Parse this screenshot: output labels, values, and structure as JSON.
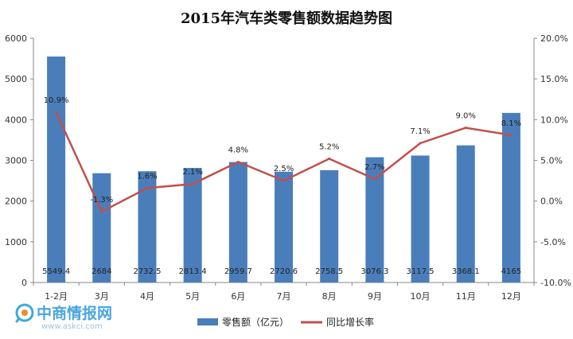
{
  "chart_data": {
    "type": "bar",
    "title": "2015年汽车类零售额数据趋势图",
    "categories": [
      "1-2月",
      "3月",
      "4月",
      "5月",
      "6月",
      "7月",
      "8月",
      "9月",
      "10月",
      "11月",
      "12月"
    ],
    "series": [
      {
        "name": "零售额（亿元）",
        "type": "bar",
        "axis": "left",
        "values": [
          5549.4,
          2684,
          2732.5,
          2813.4,
          2959.7,
          2720.6,
          2758.5,
          3076.3,
          3117.5,
          3368.1,
          4165
        ],
        "labels": [
          "5549.4",
          "2684",
          "2732.5",
          "2813.4",
          "2959.7",
          "2720.6",
          "2758.5",
          "3076.3",
          "3117.5",
          "3368.1",
          "4165"
        ]
      },
      {
        "name": "同比增长率",
        "type": "line",
        "axis": "right",
        "values": [
          10.9,
          -1.3,
          1.6,
          2.1,
          4.8,
          2.5,
          5.2,
          2.7,
          7.1,
          9.0,
          8.1
        ],
        "labels": [
          "10.9%",
          "-1.3%",
          "1.6%",
          "2.1%",
          "4.8%",
          "2.5%",
          "5.2%",
          "2.7%",
          "7.1%",
          "9.0%",
          "8.1%"
        ]
      }
    ],
    "y_left": {
      "ylim": [
        0,
        6000
      ],
      "ticks": [
        "0",
        "1000",
        "2000",
        "3000",
        "4000",
        "5000",
        "6000"
      ]
    },
    "y_right": {
      "ylim": [
        -10,
        20
      ],
      "ticks": [
        "-10.0%",
        "-5.0%",
        "0.0%",
        "5.0%",
        "10.0%",
        "15.0%",
        "20.0%"
      ]
    },
    "grid": false,
    "legend": "bottom",
    "colors": {
      "bar": "#4a7ebb",
      "line": "#c0504d"
    }
  },
  "watermark": {
    "brand": "中商情报网",
    "url": "www.askci.com"
  }
}
